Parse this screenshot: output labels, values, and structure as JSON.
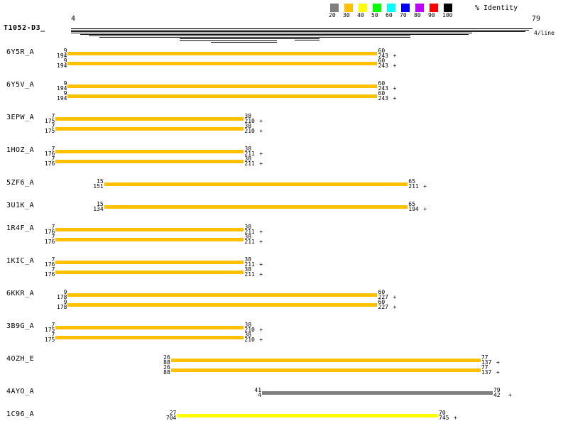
{
  "query": {
    "name": "T1052-D3_",
    "start": "4",
    "end": "79",
    "per_line": "4/line"
  },
  "legend": {
    "title": "% Identity",
    "items": [
      {
        "label": "20",
        "color": "#808080"
      },
      {
        "label": "30",
        "color": "#ffc000"
      },
      {
        "label": "40",
        "color": "#ffff00"
      },
      {
        "label": "50",
        "color": "#00ff00"
      },
      {
        "label": "60",
        "color": "#00ffff"
      },
      {
        "label": "70",
        "color": "#0000ff"
      },
      {
        "label": "80",
        "color": "#c000ff"
      },
      {
        "label": "90",
        "color": "#ff0000"
      },
      {
        "label": "100",
        "color": "#000000"
      }
    ]
  },
  "hits": [
    {
      "name": "6Y5R_A",
      "rows": [
        {
          "qs": 9,
          "qe": 60,
          "ts": "194",
          "te": "243",
          "plus": "+",
          "identity": "30"
        },
        {
          "qs": 9,
          "qe": 60,
          "ts": "194",
          "te": "243",
          "plus": "+",
          "identity": "30"
        }
      ]
    },
    {
      "name": "6Y5V_A",
      "rows": [
        {
          "qs": 9,
          "qe": 60,
          "ts": "194",
          "te": "243",
          "plus": "+",
          "identity": "30"
        },
        {
          "qs": 9,
          "qe": 60,
          "ts": "194",
          "te": "243",
          "plus": "+",
          "identity": "30"
        }
      ]
    },
    {
      "name": "3EPW_A",
      "rows": [
        {
          "qs": 7,
          "qe": 38,
          "ts": "175",
          "te": "210",
          "plus": "+",
          "identity": "30"
        },
        {
          "qs": 7,
          "qe": 38,
          "ts": "175",
          "te": "210",
          "plus": "+",
          "identity": "30"
        }
      ]
    },
    {
      "name": "1HOZ_A",
      "rows": [
        {
          "qs": 7,
          "qe": 38,
          "ts": "176",
          "te": "211",
          "plus": "+",
          "identity": "30"
        },
        {
          "qs": 7,
          "qe": 38,
          "ts": "176",
          "te": "211",
          "plus": "+",
          "identity": "30"
        }
      ]
    },
    {
      "name": "5ZF6_A",
      "rows": [
        {
          "qs": 15,
          "qe": 65,
          "ts": "151",
          "te": "211",
          "plus": "+",
          "identity": "30"
        }
      ]
    },
    {
      "name": "3U1K_A",
      "rows": [
        {
          "qs": 15,
          "qe": 65,
          "ts": "134",
          "te": "194",
          "plus": "+",
          "identity": "30"
        }
      ]
    },
    {
      "name": "1R4F_A",
      "rows": [
        {
          "qs": 7,
          "qe": 38,
          "ts": "176",
          "te": "211",
          "plus": "+",
          "identity": "30"
        },
        {
          "qs": 7,
          "qe": 38,
          "ts": "176",
          "te": "211",
          "plus": "+",
          "identity": "30"
        }
      ]
    },
    {
      "name": "1KIC_A",
      "rows": [
        {
          "qs": 7,
          "qe": 38,
          "ts": "176",
          "te": "211",
          "plus": "+",
          "identity": "30"
        },
        {
          "qs": 7,
          "qe": 38,
          "ts": "176",
          "te": "211",
          "plus": "+",
          "identity": "30"
        }
      ]
    },
    {
      "name": "6KKR_A",
      "rows": [
        {
          "qs": 9,
          "qe": 60,
          "ts": "178",
          "te": "227",
          "plus": "+",
          "identity": "30"
        },
        {
          "qs": 9,
          "qe": 60,
          "ts": "178",
          "te": "227",
          "plus": "+",
          "identity": "30"
        }
      ]
    },
    {
      "name": "3B9G_A",
      "rows": [
        {
          "qs": 7,
          "qe": 38,
          "ts": "175",
          "te": "210",
          "plus": "+",
          "identity": "30"
        },
        {
          "qs": 7,
          "qe": 38,
          "ts": "175",
          "te": "210",
          "plus": "+",
          "identity": "30"
        }
      ]
    },
    {
      "name": "4OZH_E",
      "rows": [
        {
          "qs": 26,
          "qe": 77,
          "ts": "88",
          "te": "137",
          "plus": "+",
          "identity": "30"
        },
        {
          "qs": 26,
          "qe": 77,
          "ts": "88",
          "te": "137",
          "plus": "+",
          "identity": "30"
        }
      ]
    },
    {
      "name": "4AYO_A",
      "rows": [
        {
          "qs": 41,
          "qe": 79,
          "ts": "4",
          "te": "42",
          "plus": "+",
          "identity": "20"
        }
      ]
    },
    {
      "name": "1C96_A",
      "rows": [
        {
          "qs": 27,
          "qe": 70,
          "ts": "704",
          "te": "745",
          "plus": "+",
          "identity": "40"
        }
      ]
    }
  ]
}
